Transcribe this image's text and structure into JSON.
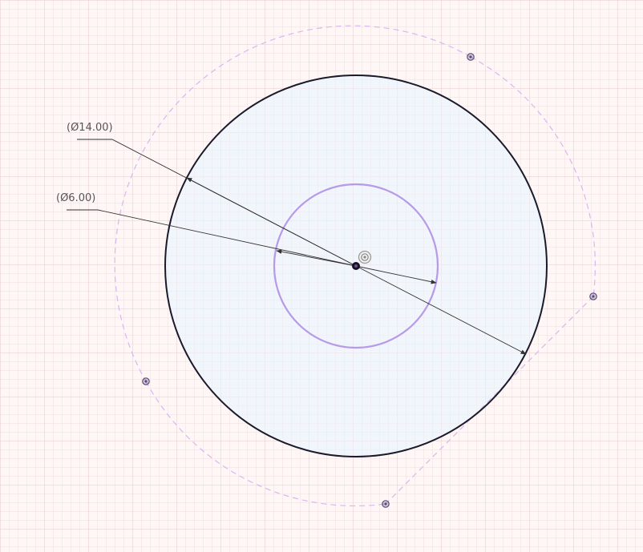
{
  "sketch": {
    "dimensions": [
      {
        "id": "outer",
        "label": "(Ø14.00)"
      },
      {
        "id": "inner",
        "label": "(Ø6.00)"
      }
    ],
    "colors": {
      "background": "#fff6f6",
      "grid_minor": "#f1dede",
      "grid_major": "#e6caca",
      "profile_fill": "#eef6fd",
      "outer_circle": "#1a1a2a",
      "inner_circle": "#b79ae8",
      "construction": "#d6b8f2",
      "dimension_line": "#333333",
      "point": "#5a4a78"
    },
    "icons": {
      "origin": "origin-marker-icon",
      "center_point": "center-point-icon"
    }
  }
}
